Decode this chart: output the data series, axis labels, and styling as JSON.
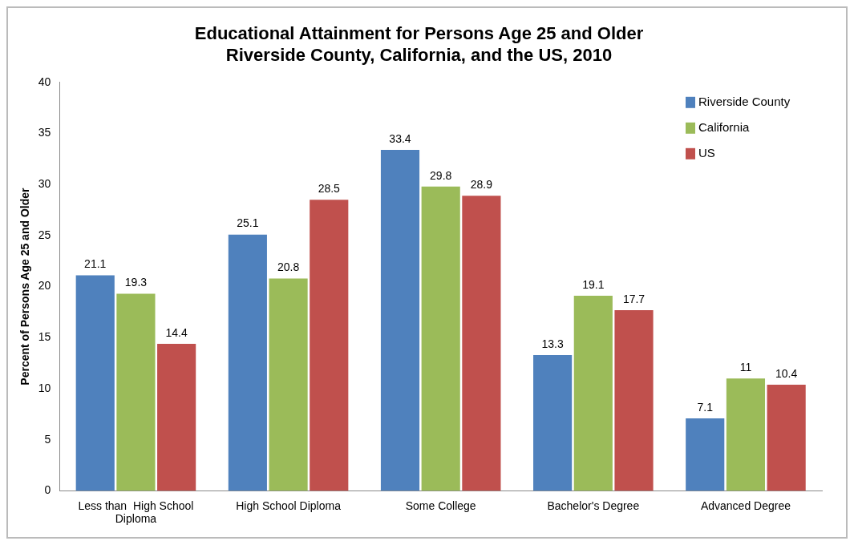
{
  "chart_data": {
    "type": "bar",
    "title": "Educational Attainment for Persons Age 25 and Older",
    "subtitle": "Riverside County, California, and the US, 2010",
    "ylabel": "Percent of Persons Age 25 and Older",
    "categories": [
      "Less than  High School Diploma",
      "High School Diploma",
      "Some College",
      "Bachelor's Degree",
      "Advanced Degree"
    ],
    "series": [
      {
        "name": "Riverside County",
        "color": "#4f81bd",
        "values": [
          21.1,
          25.1,
          33.4,
          13.3,
          7.1
        ]
      },
      {
        "name": "California",
        "color": "#9bbb59",
        "values": [
          19.3,
          20.8,
          29.8,
          19.1,
          11
        ]
      },
      {
        "name": "US",
        "color": "#c0504d",
        "values": [
          14.4,
          28.5,
          28.9,
          17.7,
          10.4
        ]
      }
    ],
    "ylim": [
      0,
      40
    ],
    "yticks": [
      0,
      5,
      10,
      15,
      20,
      25,
      30,
      35,
      40
    ],
    "grid": false,
    "legend": "top right",
    "data_labels": true
  }
}
